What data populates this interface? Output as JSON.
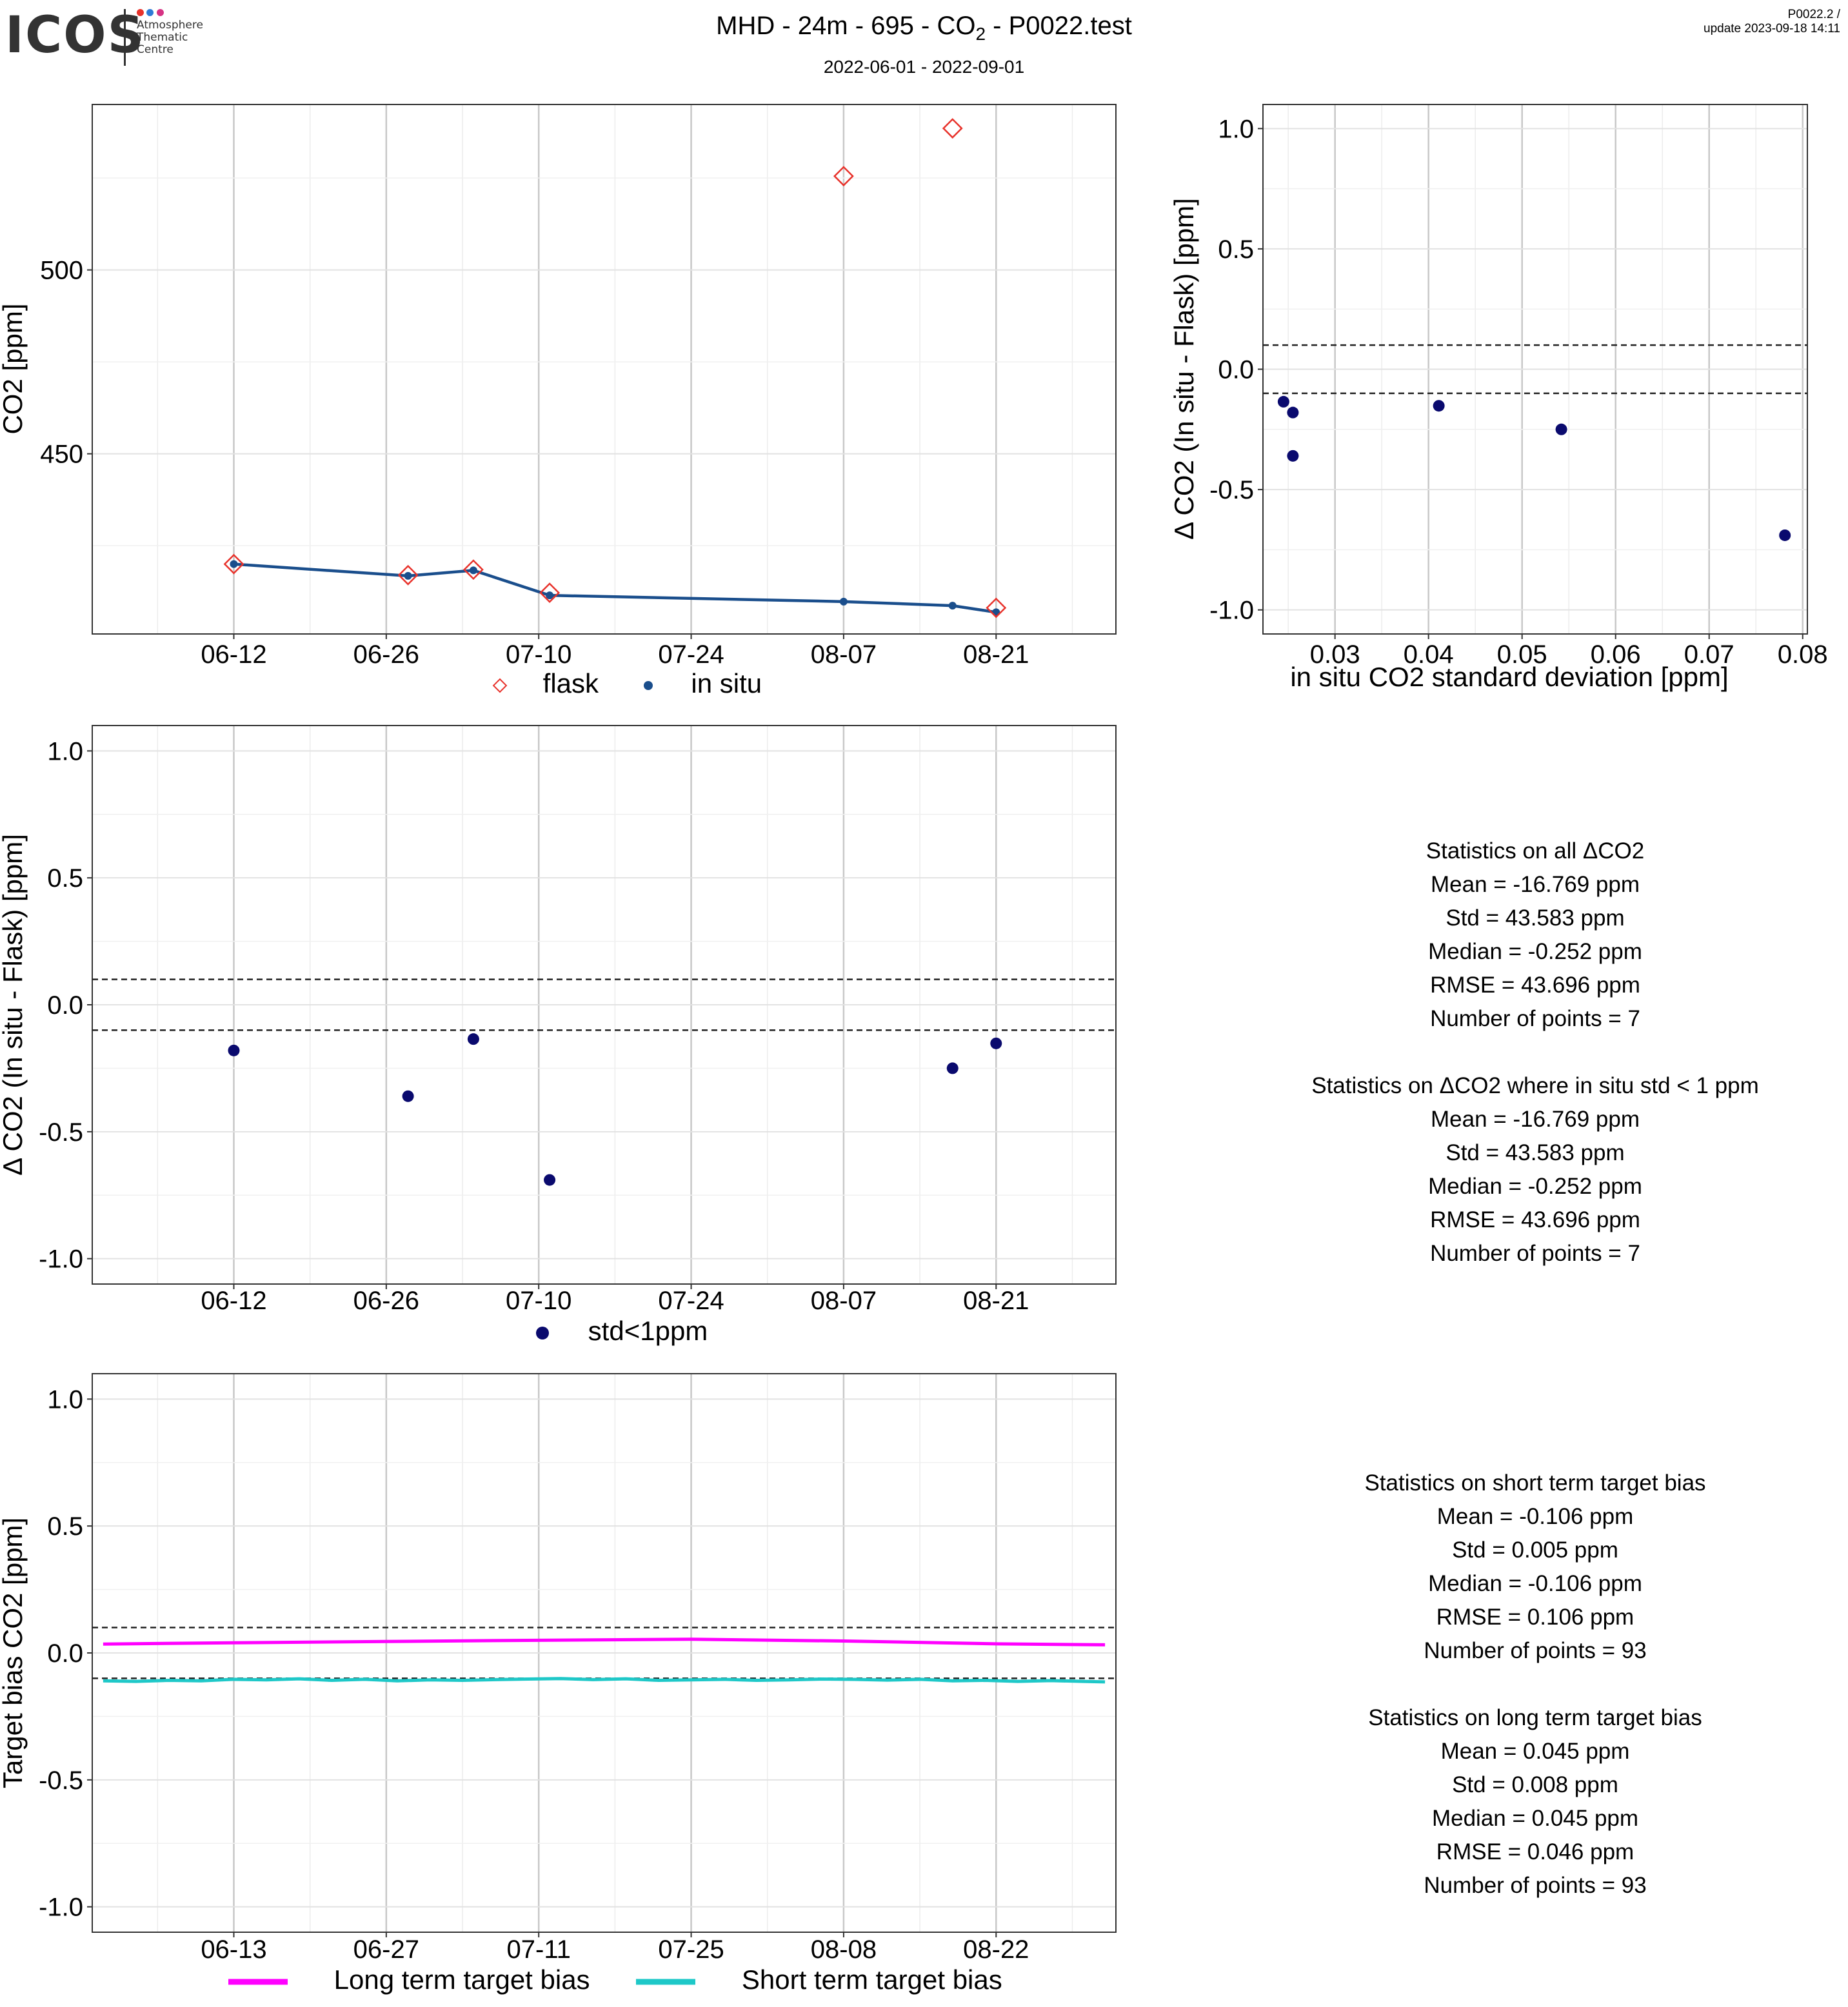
{
  "header": {
    "logo": "ICOS",
    "logo_sub": [
      "Atmosphere",
      "Thematic",
      "Centre"
    ],
    "title_prefix": "MHD - 24m - 695 - CO",
    "title_sub": "2",
    "title_suffix": " - P0022.test",
    "subtitle": "2022-06-01 - 2022-09-01",
    "version": "P0022.2 /",
    "update": "update  2023-09-18 14:11"
  },
  "colors": {
    "flask": "#e8322b",
    "insitu": "#1a4e8c",
    "std_point": "#0a0a6e",
    "long_term": "#ff00ff",
    "short_term": "#1ec8c8",
    "logo_dots": [
      "#e8322b",
      "#2e7bd6",
      "#d63384"
    ]
  },
  "chart_data": [
    {
      "id": "co2_timeseries",
      "type": "line",
      "xlabel": "",
      "ylabel": "CO2 [ppm]",
      "x_ticks": [
        "06-12",
        "06-26",
        "07-10",
        "07-24",
        "08-07",
        "08-21"
      ],
      "y_ticks": [
        "450",
        "500"
      ],
      "xlim": [
        "2022-05-30",
        "2022-09-01"
      ],
      "ylim": [
        401,
        545
      ],
      "grid": true,
      "legend": "bottom",
      "series": [
        {
          "name": "flask",
          "marker": "diamond",
          "x": [
            "2022-06-12",
            "2022-06-28",
            "2022-07-04",
            "2022-07-11",
            "2022-08-07",
            "2022-08-17",
            "2022-08-21"
          ],
          "y": [
            420.0,
            417.0,
            418.5,
            412.2,
            525.5,
            538.5,
            408.1
          ]
        },
        {
          "name": "in situ",
          "marker": "dot",
          "x": [
            "2022-06-12",
            "2022-06-28",
            "2022-07-04",
            "2022-07-11",
            "2022-08-07",
            "2022-08-17",
            "2022-08-21"
          ],
          "y": [
            420.0,
            416.8,
            418.3,
            411.5,
            409.8,
            408.7,
            406.9
          ]
        }
      ]
    },
    {
      "id": "delta_vs_std",
      "type": "scatter",
      "xlabel": "in situ CO2 standard deviation [ppm]",
      "ylabel": "Δ CO2 (In situ - Flask) [ppm]",
      "x_ticks": [
        "0.03",
        "0.04",
        "0.05",
        "0.06",
        "0.07",
        "0.08"
      ],
      "y_ticks": [
        "-1.0",
        "-0.5",
        "0.0",
        "0.5",
        "1.0"
      ],
      "xlim": [
        0.0223,
        0.0805
      ],
      "ylim": [
        -1.1,
        1.1
      ],
      "hlines": [
        0.1,
        -0.1
      ],
      "series": [
        {
          "name": "std<1ppm",
          "x": [
            0.0245,
            0.0255,
            0.0255,
            0.0411,
            0.0542,
            0.0781
          ],
          "y": [
            -0.135,
            -0.18,
            -0.36,
            -0.152,
            -0.25,
            -0.69
          ]
        }
      ]
    },
    {
      "id": "delta_timeseries",
      "type": "scatter",
      "xlabel": "",
      "ylabel": "Δ CO2 (In situ - Flask) [ppm]",
      "x_ticks": [
        "06-12",
        "06-26",
        "07-10",
        "07-24",
        "08-07",
        "08-21"
      ],
      "y_ticks": [
        "-1.0",
        "-0.5",
        "0.0",
        "0.5",
        "1.0"
      ],
      "xlim": [
        "2022-05-30",
        "2022-09-01"
      ],
      "ylim": [
        -1.1,
        1.1
      ],
      "hlines": [
        0.1,
        -0.1
      ],
      "legend": "bottom",
      "series": [
        {
          "name": "std<1ppm",
          "x": [
            "2022-06-12",
            "2022-06-28",
            "2022-07-04",
            "2022-07-11",
            "2022-08-17",
            "2022-08-21"
          ],
          "y": [
            -0.18,
            -0.36,
            -0.135,
            -0.69,
            -0.25,
            -0.152
          ]
        }
      ]
    },
    {
      "id": "target_bias",
      "type": "line",
      "xlabel": "",
      "ylabel": "Target bias CO2 [ppm]",
      "x_ticks": [
        "06-13",
        "06-27",
        "07-11",
        "07-25",
        "08-08",
        "08-22"
      ],
      "y_ticks": [
        "-1.0",
        "-0.5",
        "0.0",
        "0.5",
        "1.0"
      ],
      "xlim": [
        "2022-05-31",
        "2022-09-02"
      ],
      "ylim": [
        -1.1,
        1.1
      ],
      "hlines": [
        0.1,
        -0.1
      ],
      "legend": "bottom",
      "series": [
        {
          "name": "Long term target bias",
          "x": [
            "2022-06-01",
            "2022-06-13",
            "2022-06-27",
            "2022-07-11",
            "2022-07-25",
            "2022-08-08",
            "2022-08-22",
            "2022-09-01"
          ],
          "y": [
            0.035,
            0.04,
            0.045,
            0.05,
            0.054,
            0.047,
            0.036,
            0.032
          ]
        },
        {
          "name": "Short term target bias",
          "x": [
            "2022-06-01",
            "2022-06-04",
            "2022-06-07",
            "2022-06-10",
            "2022-06-13",
            "2022-06-16",
            "2022-06-19",
            "2022-06-22",
            "2022-06-25",
            "2022-06-28",
            "2022-07-01",
            "2022-07-04",
            "2022-07-07",
            "2022-07-10",
            "2022-07-13",
            "2022-07-16",
            "2022-07-19",
            "2022-07-22",
            "2022-07-25",
            "2022-07-28",
            "2022-07-31",
            "2022-08-03",
            "2022-08-06",
            "2022-08-09",
            "2022-08-12",
            "2022-08-15",
            "2022-08-18",
            "2022-08-21",
            "2022-08-24",
            "2022-08-27",
            "2022-08-30",
            "2022-09-01"
          ],
          "y": [
            -0.11,
            -0.112,
            -0.108,
            -0.11,
            -0.104,
            -0.106,
            -0.102,
            -0.108,
            -0.104,
            -0.11,
            -0.106,
            -0.108,
            -0.105,
            -0.103,
            -0.101,
            -0.105,
            -0.102,
            -0.108,
            -0.106,
            -0.104,
            -0.108,
            -0.106,
            -0.103,
            -0.104,
            -0.107,
            -0.104,
            -0.11,
            -0.108,
            -0.112,
            -0.109,
            -0.112,
            -0.114
          ]
        }
      ]
    }
  ],
  "legend1": {
    "flask": "flask",
    "insitu": "in situ"
  },
  "legend3": {
    "std": "std<1ppm"
  },
  "legend4": {
    "long": "Long term target bias",
    "short": "Short term target bias"
  },
  "stats_delta": [
    "Statistics on all ΔCO2",
    "Mean =  -16.769 ppm",
    "Std =  43.583 ppm",
    "Median =  -0.252 ppm",
    "RMSE =  43.696 ppm",
    "Number of points =  7",
    "",
    "Statistics on ΔCO2 where in situ std < 1 ppm",
    "Mean =  -16.769 ppm",
    "Std =  43.583 ppm",
    "Median =  -0.252 ppm",
    "RMSE =  43.696 ppm",
    "Number of points =  7"
  ],
  "stats_bias": [
    "Statistics on short term target bias",
    "Mean =  -0.106 ppm",
    "Std =  0.005 ppm",
    "Median =  -0.106 ppm",
    "RMSE =  0.106 ppm",
    "Number of points =  93",
    "",
    "Statistics on long term target bias",
    "Mean =  0.045 ppm",
    "Std =  0.008 ppm",
    "Median =  0.045 ppm",
    "RMSE =  0.046 ppm",
    "Number of points =  93"
  ]
}
